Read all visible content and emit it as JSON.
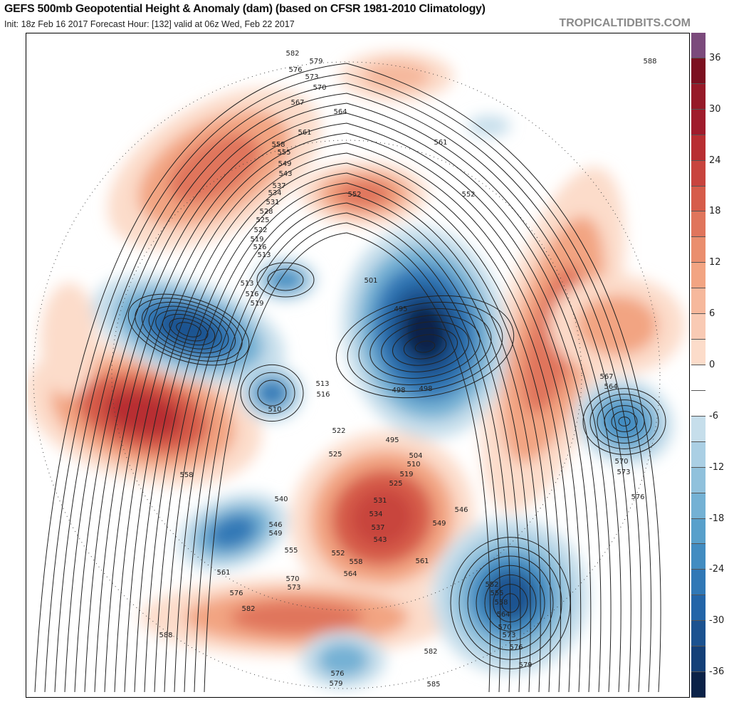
{
  "header": {
    "title": "GEFS 500mb Geopotential Height & Anomaly (dam) (based on CFSR 1981-2010 Climatology)",
    "subtitle": "Init: 18z Feb 16 2017   Forecast Hour: [132]   valid at 06z Wed, Feb 22 2017",
    "brand": "TROPICALTIDBITS.COM"
  },
  "colorbar": {
    "units": "dam",
    "tick_labels": [
      "36",
      "30",
      "24",
      "18",
      "12",
      "6",
      "0",
      "-6",
      "-12",
      "-18",
      "-24",
      "-30",
      "-36"
    ],
    "colors": [
      "#7b4a7c",
      "#7c1020",
      "#961a28",
      "#a01c2c",
      "#b82e32",
      "#c8443e",
      "#d65c4a",
      "#e0755c",
      "#ea8e6e",
      "#f2a482",
      "#f6b89c",
      "#f9cab4",
      "#fcdcca",
      "#ffffff",
      "#ffffff",
      "#c6deeb",
      "#aacfe4",
      "#90c1dc",
      "#74b1d4",
      "#58a0cb",
      "#428cc1",
      "#3078b6",
      "#2365a8",
      "#1b5290",
      "#144078",
      "#0b2248"
    ]
  },
  "map": {
    "contour_labels": [
      "582",
      "579",
      "576",
      "573",
      "570",
      "567",
      "564",
      "561",
      "558",
      "555",
      "549",
      "543",
      "537",
      "534",
      "531",
      "528",
      "525",
      "522",
      "519",
      "516",
      "513",
      "513",
      "516",
      "519",
      "510",
      "513",
      "516",
      "501",
      "495",
      "498",
      "498",
      "495",
      "504",
      "510",
      "519",
      "525",
      "531",
      "534",
      "537",
      "543",
      "522",
      "525",
      "552",
      "552",
      "561",
      "588",
      "567",
      "564",
      "570",
      "573",
      "576",
      "546",
      "549",
      "561",
      "558",
      "552",
      "564",
      "570",
      "573",
      "555",
      "549",
      "546",
      "540",
      "558",
      "561",
      "576",
      "582",
      "588",
      "552",
      "555",
      "558",
      "564",
      "570",
      "573",
      "576",
      "579",
      "582",
      "585",
      "576",
      "579"
    ]
  }
}
